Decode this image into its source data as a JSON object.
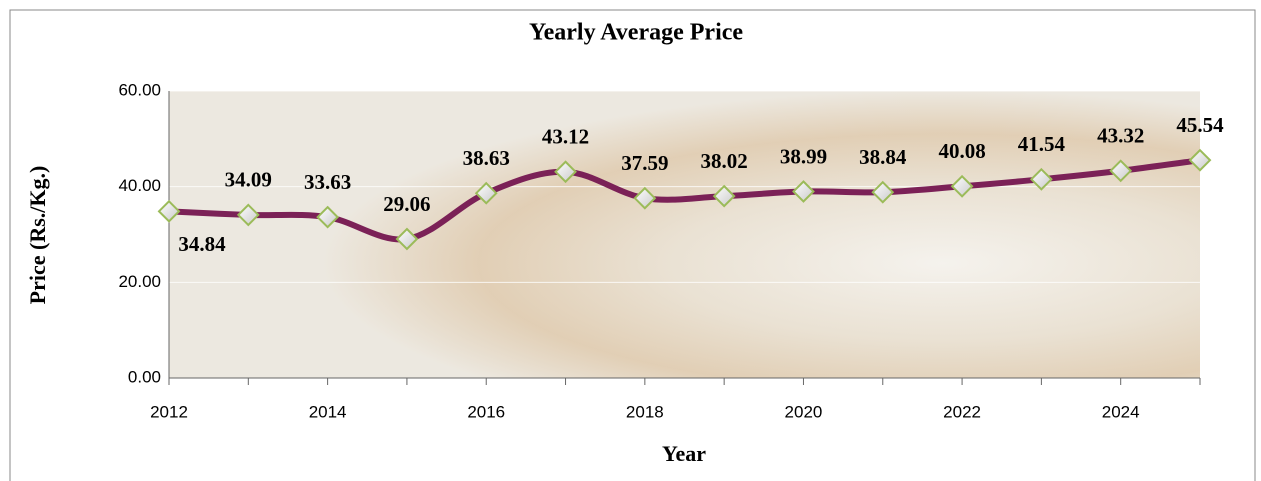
{
  "chart_data": {
    "type": "line",
    "title": "Yearly Average Price",
    "x_label": "Year",
    "y_label": "Price (Rs./Kg.)",
    "x": [
      2012,
      2013,
      2014,
      2015,
      2016,
      2017,
      2018,
      2019,
      2020,
      2021,
      2022,
      2023,
      2024,
      2025
    ],
    "series": [
      {
        "name": "Yearly Average Price",
        "color": "#7b2157",
        "values": [
          34.84,
          34.09,
          33.63,
          29.06,
          38.63,
          43.12,
          37.59,
          38.02,
          38.99,
          38.84,
          40.08,
          41.54,
          43.32,
          45.54
        ]
      }
    ],
    "xlim": [
      2012,
      2025
    ],
    "xticks": [
      2012,
      2014,
      2016,
      2018,
      2020,
      2022,
      2024
    ],
    "ylim": [
      0,
      60
    ],
    "yticks": [
      {
        "value": 0,
        "label": "0.00"
      },
      {
        "value": 20,
        "label": "20.00"
      },
      {
        "value": 40,
        "label": "40.00"
      },
      {
        "value": 60,
        "label": "60.00"
      }
    ],
    "grid": true,
    "smooth": true,
    "marker_color": "#9bbb59"
  }
}
